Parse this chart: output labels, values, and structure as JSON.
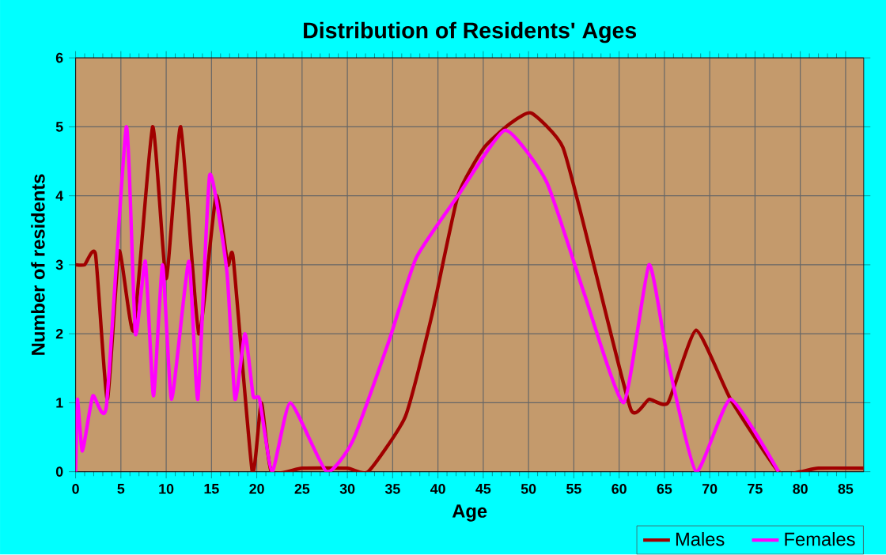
{
  "chart_data": {
    "type": "line",
    "title": "Distribution of Residents' Ages",
    "xlabel": "Age",
    "ylabel": "Number of residents",
    "xlim": [
      0,
      87
    ],
    "ylim": [
      0,
      6
    ],
    "xticks": [
      0,
      5,
      10,
      15,
      20,
      25,
      30,
      35,
      40,
      45,
      50,
      55,
      60,
      65,
      70,
      75,
      80,
      85
    ],
    "yticks": [
      0,
      1,
      2,
      3,
      4,
      5,
      6
    ],
    "grid": true,
    "legend": "bottom right",
    "marker": "none",
    "line_style": "solid",
    "series": [
      {
        "name": "Males",
        "color": "#a00000",
        "x": [
          0,
          1.0,
          2.2,
          3.5,
          4.8,
          6.4,
          8.5,
          10,
          11.6,
          13.6,
          15.5,
          16.8,
          17.4,
          19.5,
          20.5,
          21.6,
          25,
          30,
          32.3,
          36.4,
          39.3,
          42.2,
          45.1,
          48,
          50.3,
          53.8,
          57.2,
          61.3,
          63.3,
          65.4,
          68.5,
          72.3,
          77.6,
          80,
          82,
          87
        ],
        "values": [
          3,
          3.0,
          3.15,
          1.05,
          3.2,
          2.05,
          5,
          2.8,
          5,
          2,
          4,
          3,
          3.1,
          0,
          1,
          0,
          0.05,
          0.05,
          0,
          0.8,
          2.25,
          4,
          4.7,
          5.05,
          5.2,
          4.7,
          3,
          0.9,
          1.05,
          1,
          2.05,
          1.05,
          0,
          0,
          0.05,
          0.05
        ]
      },
      {
        "name": "Females",
        "color": "#ff00ff",
        "x": [
          0,
          0.2,
          0.75,
          1.9,
          3.4,
          5.6,
          6.6,
          7.7,
          8.6,
          9.6,
          10.6,
          12.5,
          13.5,
          14.8,
          16.7,
          17.6,
          18.7,
          19.6,
          20.3,
          21.7,
          23.7,
          27.7,
          30.6,
          34.6,
          37.6,
          42.2,
          47.4,
          52,
          56.1,
          60.5,
          63.3,
          65.4,
          68.5,
          72.3,
          77.6
        ],
        "values": [
          0,
          1.05,
          0.3,
          1.1,
          0.95,
          5,
          2,
          3.05,
          1.1,
          3,
          1.05,
          3.05,
          1.05,
          4.3,
          2.9,
          1.05,
          2,
          1.1,
          1.05,
          0,
          1,
          0,
          0.45,
          1.9,
          3.1,
          4,
          4.95,
          4.2,
          2.6,
          1,
          3,
          1.6,
          0,
          1.05,
          0
        ]
      }
    ]
  }
}
